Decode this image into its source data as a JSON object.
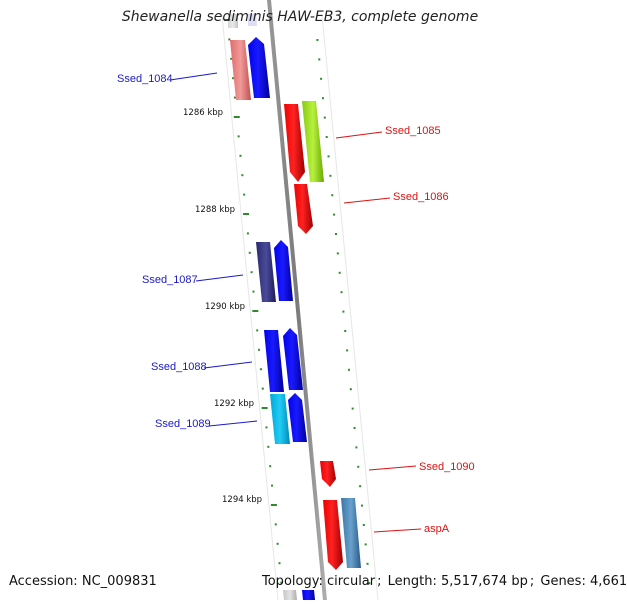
{
  "title": "Shewanella sediminis HAW-EB3, complete genome",
  "accession_label": "Accession:",
  "accession": "NC_009831",
  "topology_label": "Topology:",
  "topology": "circular",
  "length_label": "Length:",
  "length": "5,517,674 bp",
  "genes_label": "Genes:",
  "genes": "4,661",
  "colors": {
    "backbone": "#8a8a8a",
    "tick": "#2e8b2e",
    "label_forward": "#1a1acc",
    "label_reverse": "#dd1111"
  },
  "scale_labels": [
    "1286 kbp",
    "1288 kbp",
    "1290 kbp",
    "1292 kbp",
    "1294 kbp"
  ],
  "genes_list": [
    {
      "id": "Ssed_1084",
      "side": "left",
      "label_color": "#1a1acc"
    },
    {
      "id": "Ssed_1085",
      "side": "right",
      "label_color": "#dd1111"
    },
    {
      "id": "Ssed_1086",
      "side": "right",
      "label_color": "#dd1111"
    },
    {
      "id": "Ssed_1087",
      "side": "left",
      "label_color": "#1a1acc"
    },
    {
      "id": "Ssed_1088",
      "side": "left",
      "label_color": "#1a1acc"
    },
    {
      "id": "Ssed_1089",
      "side": "left",
      "label_color": "#1a1acc"
    },
    {
      "id": "Ssed_1090",
      "side": "right",
      "label_color": "#dd1111"
    },
    {
      "id": "aspA",
      "side": "right",
      "label_color": "#dd1111"
    }
  ]
}
